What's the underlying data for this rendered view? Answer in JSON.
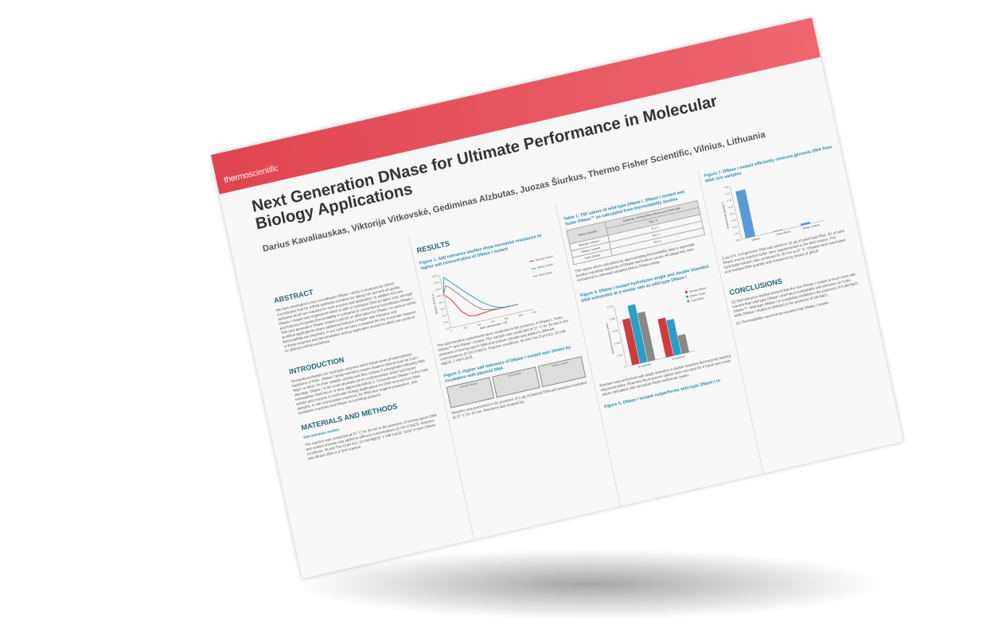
{
  "brand": {
    "logo": "thermo scientific",
    "logo_a": "thermo",
    "logo_b": "scientific",
    "banner_color": "#e45058"
  },
  "title": "Next Generation DNase for Ultimate Performance in Molecular Biology Applications",
  "authors": "Darius Kavaliauskas, Viktorija Vitkovskė, Gediminas Alzbutas, Juozas Šiurkus, Thermo Fisher Scientific, Vilnius, Lithuania",
  "abstract": {
    "heading": "ABSTRACT",
    "text": "We have developed a new recombinant DNase I which is produced by GRAS recombinant host for mRNA synthesis workflow, by taking into account all quality attributes which are required for such enzyme and application. In addition the new DNase I mutant was engineered which is able to hydrolyze DNA at higher ionic strength and features increased thermolability if compared to conventional recombinant DNase I. This next generation DNase mutant could be an alternative for DNase I in various mRNA workflow applications where additional features of higher salt tolerance and thermolability are important. In our work we have compared the key enzymatic features of these enzymes and demonstrated various application scenarios which are common for different mRNA workflows."
  },
  "introduction": {
    "heading": "INTRODUCTION",
    "text": "Deoxyribonucleases are hydrolytic enzymes which break down phosphodiester backbone of DNA. DNase I family members require divalent cations such as Ca2+, Mg2+ or Mn2+ for their catalytic activity and they release 5'-phosphates following DNA cleavage. DNase I is the most abundant serum endonuclease which hydrolyzes extracellular DNA into tri or tetra oligonucleotides1,2. Conventional DNase I is the most widely used enzyme in molecular biology applications for DNA removal from RNA samples, in vitro transcription reactions, for DNA-free reagent preparation, nick translation reactions and DNase foot printing studies3."
  },
  "methods": {
    "heading": "MATERIALS AND METHODS",
    "subheading": "Salt tolerance studies",
    "text": "The reaction was conducted at 37 °C for 30 min in the presence of herring sperm DNA and sodium chloride was added to different concentrations (0-1M of NaCl). Reaction conditions: 40 mM Tris-Cl pH 8.0, 10 mM MgCl2, 1 mM CaCl2. 1U/µl of each DNase was diluted 250x in a final reaction"
  },
  "results": {
    "heading": "RESULTS",
    "fig1_title": "Figure 1.  Salt tolerance studies show increased resistance to higher salt concentration of DNase I mutant",
    "fig1_caption": "The salt tolerance experiments were conducted in the presence of DNase I, Turbo DNase™ and DNase I mutant. The reaction was conducted at 37 °C for 30 min in the presence of herring sperm DNA and sodium chloride was added to different concentrations (0-1M of NaCl). Reaction conditions: 40 mM Tris-Cl pH 8.0, 10 mM MgCl2, 1 mM CaCl2.",
    "fig2_title": "Figure 2.  Higher salt tolerance of DNase I mutant was shown by incubation with plasmid DNA",
    "gels": [
      "wild-type DNase I",
      "Turbo DNase",
      "DNase I mutant"
    ],
    "fig2_caption": "Reaction was performed in the presence of 1 µg of plasmid DNA and samples incubated at 37 °C for 10 min. Reactions was stopped by"
  },
  "table1": {
    "title": "Table 1. T50 values of wild-type DNase I, DNase I mutant and Turbo DNase™ as calculated from thermolability studies",
    "header_group": "Substrate: herring DNA or fluorescent DNA oligo",
    "header_unit": "T50, °C",
    "row_header": "DNase mutants",
    "rows": [
      {
        "name": "Wild-type DNase I",
        "value": "71 ± 1"
      },
      {
        "name": "DNase I mutant",
        "value": "60 ± 1"
      },
      {
        "name": "Turbo DNase",
        "value": "63 ± 1"
      }
    ],
    "caption": "T50 values where calculated by approximating thermolability data to sigmoidal function reporting midpoints of DNase inactivation curves. All datapoints were normalized to untreated samples before DNase assay."
  },
  "fig4": {
    "title": "Figure 4. DNase I mutant hydrolyzes single and double stranded DNA substrates at a similar rate as wild-type DNase I",
    "caption": "Reaction was performed with single stranded or double stranded fluorescently labeled oligonucleotides. Real-time fluorescence values were recorded for 2 hours and Vmax values calculated with Varioskan Flash multimode reader.",
    "next_title": "Figure 5. DNase I mutant outperforms wild-type DNase I in"
  },
  "fig7": {
    "title": "Figure 7.  DNase I mutant efficiently removes genomic DNA from RNA rich samples",
    "caption": "2 µg of E. Coli genomic DNA was added to 10 µg of yeast total RNA, 2U of each DNase and its reaction buffer were supplemented to the final mixture. The hydrolysis reaction was continued for 30 min at 37 °C. DNases were inactivated and residual DNA quantity was measured by means of qPCR."
  },
  "conclusions": {
    "heading": "CONCLUSIONS",
    "items": [
      "(1)  Salt tolerance studies showed that the new DNase I mutant is much more salt tolerant than wild-type DNase I and has a comparable salt tolerance as Turbo DNase™. Wild-type DNase I is completely inhibited in the presence of 0.4M NaCl while DNase I mutant is inhibited in the presence of 1M NaCl.",
      "(2)  Thermolability experiments revealed that DNase I mutant"
    ]
  },
  "chart_data": [
    {
      "type": "line",
      "title": "",
      "xlabel": "NaCl concentration, mM",
      "ylabel": "Relative activity, %",
      "xlim": [
        0,
        1200
      ],
      "ylim": [
        0,
        160
      ],
      "xticks": [
        "0",
        "200",
        "400",
        "600",
        "800",
        "1000",
        "1200"
      ],
      "yticks": [
        "0.0",
        "20.0",
        "40.0",
        "60.0",
        "80.0",
        "100.0",
        "120.0",
        "140.0",
        "160.0"
      ],
      "x": [
        0,
        50,
        100,
        200,
        300,
        400,
        500,
        600,
        700,
        800,
        1000
      ],
      "series": [
        {
          "name": "wild-type DNase I",
          "color": "#d03a3f",
          "values": [
            100,
            90,
            78,
            40,
            22,
            20,
            22,
            24,
            24,
            24,
            24
          ]
        },
        {
          "name": "DNase I mutant",
          "color": "#2a9fc6",
          "values": [
            100,
            150,
            140,
            118,
            95,
            75,
            55,
            40,
            30,
            25,
            24
          ]
        },
        {
          "name": "Turbo DNase",
          "color": "#888888",
          "values": [
            100,
            125,
            118,
            95,
            70,
            48,
            32,
            27,
            25,
            24,
            24
          ]
        }
      ]
    },
    {
      "type": "bar",
      "title": "",
      "ylabel": "Relative fluorescence units/s",
      "ylim": [
        0,
        0.01
      ],
      "yticks": [
        "0",
        "0.002",
        "0.004",
        "0.006",
        "0.008",
        "0.010"
      ],
      "categories": [
        "ds substrate",
        "ss substrate"
      ],
      "series": [
        {
          "name": "wild-type DNase I",
          "color": "#d03a3f",
          "values": [
            0.0075,
            0.0063
          ]
        },
        {
          "name": "DNase I mutant",
          "color": "#2a9fc6",
          "values": [
            0.0095,
            0.0058
          ]
        },
        {
          "name": "Turbo DNase",
          "color": "#888888",
          "values": [
            0.008,
            0.003
          ]
        }
      ]
    },
    {
      "type": "bar",
      "title": "",
      "ylabel": "Residual DNA quantity, %",
      "ylim": [
        0,
        0.08
      ],
      "yticks": [
        "0.00",
        "0.01",
        "0.02",
        "0.03",
        "0.04",
        "0.05",
        "0.06",
        "0.07",
        "0.08"
      ],
      "categories": [
        "DNaseI",
        "Turbo DNase",
        "DNase I mutant"
      ],
      "color": "#5b9bd5",
      "values": [
        0.071,
        0.001,
        0.003
      ]
    }
  ]
}
